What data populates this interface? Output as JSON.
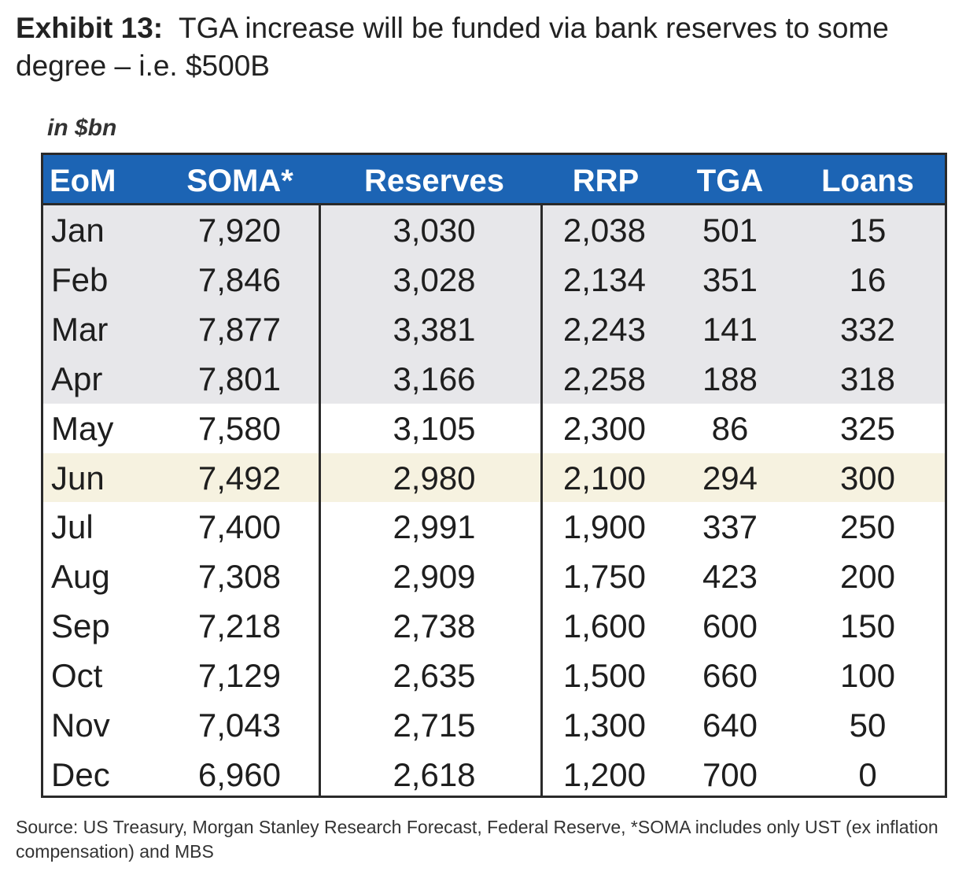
{
  "title": {
    "label": "Exhibit 13:",
    "text": "TGA increase will be funded via bank reserves to some degree – i.e. $500B"
  },
  "unit_note": "in $bn",
  "source": "Source: US Treasury, Morgan Stanley Research Forecast, Federal Reserve, *SOMA includes only UST (ex inflation compensation) and MBS",
  "colors": {
    "header_bg": "#1c64b4",
    "shaded_row": "#e7e7ea",
    "highlight_row": "#f6f2e0"
  },
  "chart_data": {
    "type": "table",
    "columns": [
      "EoM",
      "SOMA*",
      "Reserves",
      "RRP",
      "TGA",
      "Loans"
    ],
    "rows": [
      {
        "cells": [
          "Jan",
          "7,920",
          "3,030",
          "2,038",
          "501",
          "15"
        ],
        "style": "shaded"
      },
      {
        "cells": [
          "Feb",
          "7,846",
          "3,028",
          "2,134",
          "351",
          "16"
        ],
        "style": "shaded"
      },
      {
        "cells": [
          "Mar",
          "7,877",
          "3,381",
          "2,243",
          "141",
          "332"
        ],
        "style": "shaded"
      },
      {
        "cells": [
          "Apr",
          "7,801",
          "3,166",
          "2,258",
          "188",
          "318"
        ],
        "style": "shaded"
      },
      {
        "cells": [
          "May",
          "7,580",
          "3,105",
          "2,300",
          "86",
          "325"
        ],
        "style": "white"
      },
      {
        "cells": [
          "Jun",
          "7,492",
          "2,980",
          "2,100",
          "294",
          "300"
        ],
        "style": "hl"
      },
      {
        "cells": [
          "Jul",
          "7,400",
          "2,991",
          "1,900",
          "337",
          "250"
        ],
        "style": "white"
      },
      {
        "cells": [
          "Aug",
          "7,308",
          "2,909",
          "1,750",
          "423",
          "200"
        ],
        "style": "white"
      },
      {
        "cells": [
          "Sep",
          "7,218",
          "2,738",
          "1,600",
          "600",
          "150"
        ],
        "style": "white"
      },
      {
        "cells": [
          "Oct",
          "7,129",
          "2,635",
          "1,500",
          "660",
          "100"
        ],
        "style": "white"
      },
      {
        "cells": [
          "Nov",
          "7,043",
          "2,715",
          "1,300",
          "640",
          "50"
        ],
        "style": "white"
      },
      {
        "cells": [
          "Dec",
          "6,960",
          "2,618",
          "1,200",
          "700",
          "0"
        ],
        "style": "white"
      }
    ]
  }
}
